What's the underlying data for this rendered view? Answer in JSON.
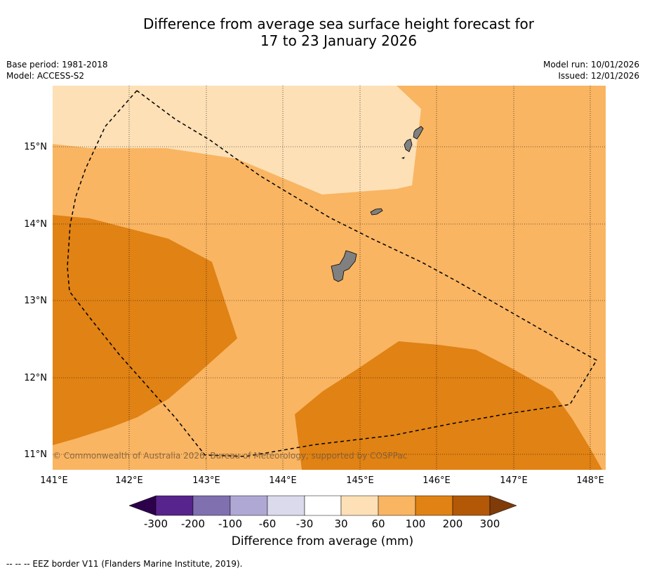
{
  "title_line1": "Difference from average sea surface height forecast for",
  "title_line2": "17 to 23 January 2026",
  "base_period": "Base period: 1981-2018",
  "model": "Model: ACCESS-S2",
  "model_run": "Model run: 10/01/2026",
  "issued": "Issued: 12/01/2026",
  "copyright": "© Commonwealth of Australia 2026, Bureau of Meteorology, supported by COSPPac",
  "lon_ticks": [
    "141°E",
    "142°E",
    "143°E",
    "144°E",
    "145°E",
    "146°E",
    "147°E",
    "148°E"
  ],
  "lat_ticks": [
    "15°N",
    "14°N",
    "13°N",
    "12°N",
    "11°N"
  ],
  "colorbar": {
    "label": "Difference from average (mm)",
    "ticks": [
      "-300",
      "-200",
      "-100",
      "-60",
      "-30",
      "30",
      "60",
      "100",
      "200",
      "300"
    ],
    "colors": [
      "#57238c",
      "#8070b0",
      "#b0a8d4",
      "#dadaec",
      "#ffffff",
      "#fde0b6",
      "#f9b562",
      "#e08214",
      "#b35806"
    ],
    "under_color": "#2d004b",
    "over_color": "#7f3b08"
  },
  "map": {
    "land_color": "#808080",
    "lon_range": [
      141,
      148.2
    ],
    "lat_range": [
      10.8,
      15.8
    ]
  },
  "footer": "--  --  -- EEZ border V11 (Flanders Marine Institute, 2019)."
}
